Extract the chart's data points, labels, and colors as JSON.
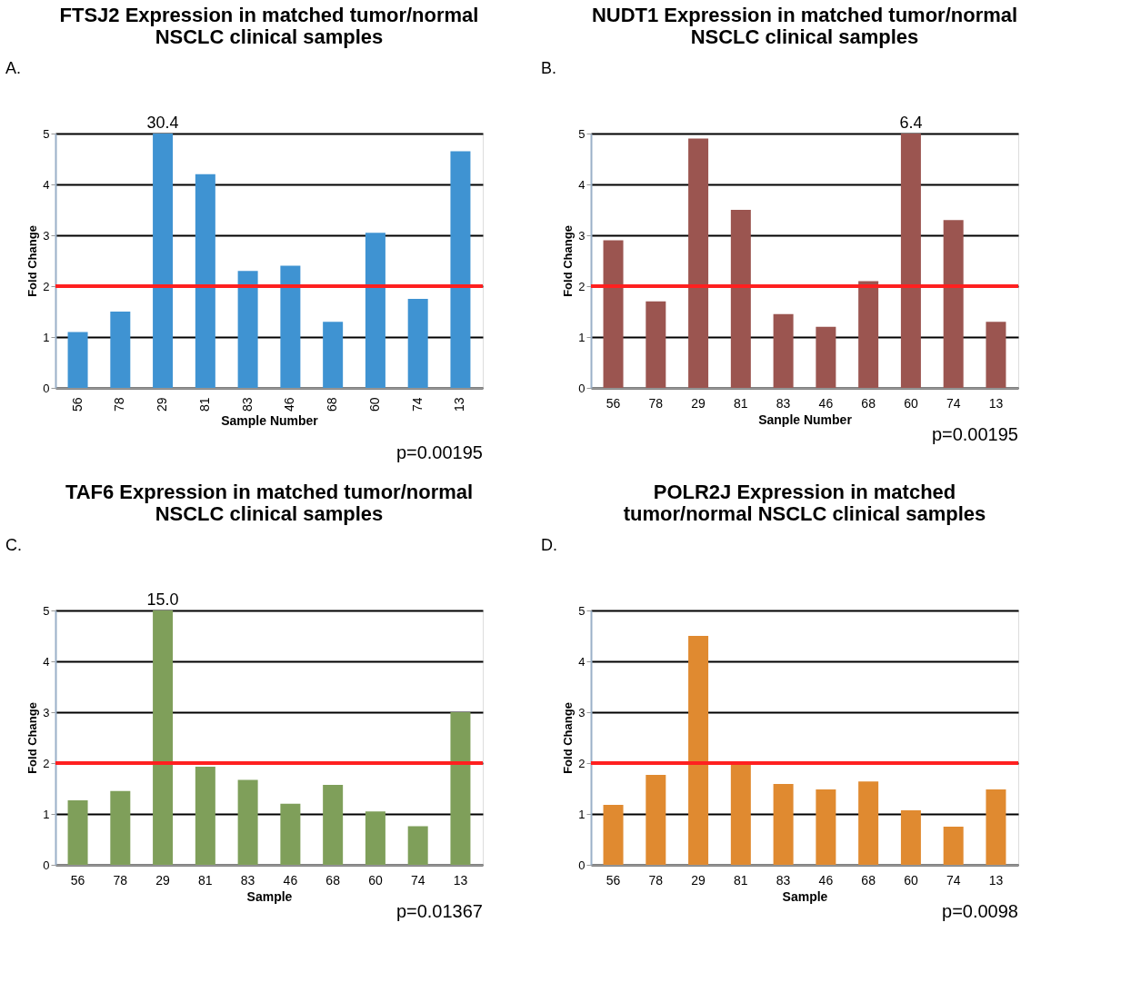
{
  "chart_data": [
    {
      "type": "bar",
      "title": "FTSJ2 Expression in matched tumor/normal NSCLC clinical samples",
      "xlabel": "Sample Number",
      "ylabel": "Fold Change",
      "categories": [
        "56",
        "78",
        "29",
        "81",
        "83",
        "46",
        "68",
        "60",
        "74",
        "13"
      ],
      "values": [
        1.1,
        1.5,
        5,
        4.2,
        2.3,
        2.4,
        1.3,
        3.05,
        1.75,
        4.65
      ],
      "color": "#3f93d2",
      "ylim": [
        0,
        5
      ],
      "yticks": [
        0,
        1,
        2,
        3,
        4,
        5
      ],
      "grid": "y",
      "ref_lines": [
        {
          "axis": "y",
          "value": 2,
          "color": "#ff2020"
        }
      ],
      "annotations": [
        "A.",
        {
          "text": "30.4",
          "x": "29",
          "y": 5
        },
        "p=0.00195"
      ]
    },
    {
      "type": "bar",
      "title": "NUDT1 Expression in matched tumor/normal NSCLC clinical samples",
      "xlabel": "Sanple Number",
      "ylabel": "Fold Change",
      "categories": [
        "56",
        "78",
        "29",
        "81",
        "83",
        "46",
        "68",
        "60",
        "74",
        "13"
      ],
      "values": [
        2.9,
        1.7,
        4.9,
        3.5,
        1.45,
        1.2,
        2.1,
        5,
        3.3,
        1.3
      ],
      "color": "#9b5550",
      "ylim": [
        0,
        5
      ],
      "yticks": [
        0,
        1,
        2,
        3,
        4,
        5
      ],
      "grid": "y",
      "ref_lines": [
        {
          "axis": "y",
          "value": 2,
          "color": "#ff2020"
        }
      ],
      "annotations": [
        "B.",
        {
          "text": "6.4",
          "x": "60",
          "y": 5
        },
        "p=0.00195"
      ]
    },
    {
      "type": "bar",
      "title": "TAF6 Expression in matched tumor/normal NSCLC clinical samples",
      "xlabel": "Sample",
      "ylabel": "Fold Change",
      "categories": [
        "56",
        "78",
        "29",
        "81",
        "83",
        "46",
        "68",
        "60",
        "74",
        "13"
      ],
      "values": [
        1.27,
        1.45,
        5,
        1.93,
        1.67,
        1.2,
        1.57,
        1.05,
        0.76,
        3.0
      ],
      "color": "#7f9f5a",
      "ylim": [
        0,
        5
      ],
      "yticks": [
        0,
        1,
        2,
        3,
        4,
        5
      ],
      "grid": "y",
      "ref_lines": [
        {
          "axis": "y",
          "value": 2,
          "color": "#ff2020"
        }
      ],
      "annotations": [
        "C.",
        {
          "text": "15.0",
          "x": "29",
          "y": 5
        },
        "p=0.01367"
      ]
    },
    {
      "type": "bar",
      "title": "POLR2J Expression in matched tumor/normal NSCLC clinical samples",
      "xlabel": "Sample",
      "ylabel": "Fold Change",
      "categories": [
        "56",
        "78",
        "29",
        "81",
        "83",
        "46",
        "68",
        "60",
        "74",
        "13"
      ],
      "values": [
        1.18,
        1.77,
        4.5,
        1.98,
        1.59,
        1.48,
        1.64,
        1.07,
        0.75,
        1.48
      ],
      "color": "#e08a30",
      "ylim": [
        0,
        5
      ],
      "yticks": [
        0,
        1,
        2,
        3,
        4,
        5
      ],
      "grid": "y",
      "ref_lines": [
        {
          "axis": "y",
          "value": 2,
          "color": "#ff2020"
        }
      ],
      "annotations": [
        "D.",
        "p=0.0098"
      ]
    }
  ]
}
